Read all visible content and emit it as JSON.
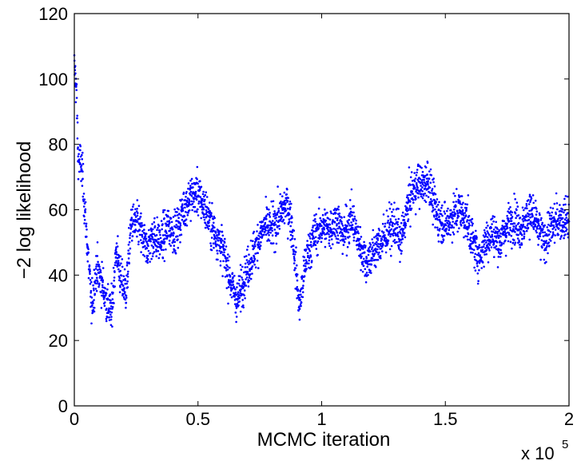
{
  "chart_data": {
    "type": "scatter",
    "title": "",
    "xlabel": "MCMC iteration",
    "ylabel": "−2 log likelihood",
    "x_scale_label": "x 10",
    "x_scale_exponent": "5",
    "xlim": [
      0,
      200000
    ],
    "ylim": [
      0,
      120
    ],
    "x_ticks": [
      0,
      50000,
      100000,
      150000,
      200000
    ],
    "x_tick_labels": [
      "0",
      "0.5",
      "1",
      "1.5",
      "2"
    ],
    "y_ticks": [
      0,
      20,
      40,
      60,
      80,
      100,
      120
    ],
    "y_tick_labels": [
      "0",
      "20",
      "40",
      "60",
      "80",
      "100",
      "120"
    ],
    "grid": false,
    "marker_color": "#0000ff",
    "series": [
      {
        "trace": [
          [
            0,
            103
          ],
          [
            800,
            98
          ],
          [
            1500,
            76
          ],
          [
            3000,
            73
          ],
          [
            5000,
            52
          ],
          [
            7000,
            30
          ],
          [
            9000,
            42
          ],
          [
            11000,
            38
          ],
          [
            13000,
            32
          ],
          [
            15000,
            28
          ],
          [
            17000,
            48
          ],
          [
            19000,
            38
          ],
          [
            21000,
            35
          ],
          [
            23000,
            56
          ],
          [
            26000,
            55
          ],
          [
            29000,
            48
          ],
          [
            32000,
            52
          ],
          [
            35000,
            50
          ],
          [
            38000,
            55
          ],
          [
            41000,
            53
          ],
          [
            44000,
            60
          ],
          [
            47000,
            64
          ],
          [
            50000,
            65
          ],
          [
            53000,
            60
          ],
          [
            56000,
            54
          ],
          [
            59000,
            50
          ],
          [
            62000,
            42
          ],
          [
            64000,
            36
          ],
          [
            66000,
            32
          ],
          [
            68000,
            38
          ],
          [
            70000,
            42
          ],
          [
            72000,
            46
          ],
          [
            74000,
            50
          ],
          [
            77000,
            55
          ],
          [
            80000,
            54
          ],
          [
            83000,
            58
          ],
          [
            86000,
            62
          ],
          [
            88000,
            55
          ],
          [
            90000,
            38
          ],
          [
            91000,
            30
          ],
          [
            92000,
            36
          ],
          [
            94000,
            46
          ],
          [
            97000,
            52
          ],
          [
            100000,
            55
          ],
          [
            103000,
            54
          ],
          [
            106000,
            57
          ],
          [
            109000,
            52
          ],
          [
            112000,
            58
          ],
          [
            115000,
            50
          ],
          [
            118000,
            44
          ],
          [
            121000,
            47
          ],
          [
            124000,
            50
          ],
          [
            127000,
            54
          ],
          [
            130000,
            55
          ],
          [
            132000,
            50
          ],
          [
            135000,
            62
          ],
          [
            137000,
            66
          ],
          [
            139000,
            68
          ],
          [
            141000,
            67
          ],
          [
            143000,
            70
          ],
          [
            145000,
            62
          ],
          [
            147000,
            58
          ],
          [
            150000,
            55
          ],
          [
            153000,
            58
          ],
          [
            156000,
            60
          ],
          [
            159000,
            56
          ],
          [
            162000,
            48
          ],
          [
            164000,
            45
          ],
          [
            166000,
            50
          ],
          [
            169000,
            53
          ],
          [
            172000,
            50
          ],
          [
            175000,
            55
          ],
          [
            178000,
            57
          ],
          [
            181000,
            54
          ],
          [
            184000,
            60
          ],
          [
            187000,
            55
          ],
          [
            190000,
            50
          ],
          [
            193000,
            55
          ],
          [
            196000,
            57
          ],
          [
            200000,
            57
          ]
        ],
        "spread": 4.5
      }
    ]
  }
}
